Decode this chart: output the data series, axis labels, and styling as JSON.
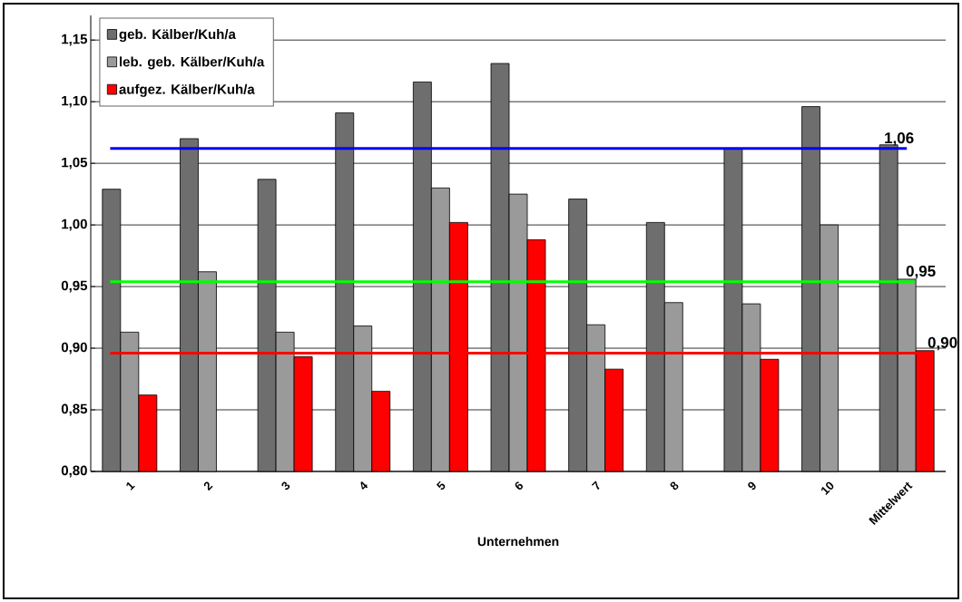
{
  "chart_data": {
    "type": "bar",
    "xlabel": "Unternehmen",
    "categories": [
      "1",
      "2",
      "3",
      "4",
      "5",
      "6",
      "7",
      "8",
      "9",
      "10",
      "Mittelwert"
    ],
    "series": [
      {
        "name": "geb. Kälber/Kuh/a",
        "color": "#6e6e6e",
        "values": [
          1.029,
          1.07,
          1.037,
          1.091,
          1.116,
          1.131,
          1.021,
          1.002,
          1.062,
          1.096,
          1.065
        ]
      },
      {
        "name": "leb. geb. Kälber/Kuh/a",
        "color": "#9a9a9a",
        "values": [
          0.913,
          0.962,
          0.913,
          0.918,
          1.03,
          1.025,
          0.919,
          0.937,
          0.936,
          1.0,
          0.956
        ]
      },
      {
        "name": "aufgez. Kälber/Kuh/a",
        "color": "#ff0000",
        "values": [
          0.862,
          null,
          0.893,
          0.865,
          1.002,
          0.988,
          0.883,
          null,
          0.891,
          null,
          0.898
        ]
      }
    ],
    "ylim": [
      0.8,
      1.17
    ],
    "yticks": [
      {
        "value": 0.8,
        "label": "0,80"
      },
      {
        "value": 0.85,
        "label": "0,85"
      },
      {
        "value": 0.9,
        "label": "0,90"
      },
      {
        "value": 0.95,
        "label": "0,95"
      },
      {
        "value": 1.0,
        "label": "1,00"
      },
      {
        "value": 1.05,
        "label": "1,05"
      },
      {
        "value": 1.1,
        "label": "1,10"
      },
      {
        "value": 1.15,
        "label": "1,15"
      }
    ],
    "ref_lines": [
      {
        "axis": "y",
        "value": 1.062,
        "label": "1,06",
        "color": "#0000ff"
      },
      {
        "axis": "y",
        "value": 0.954,
        "label": "0,95",
        "color": "#00ff00"
      },
      {
        "axis": "y",
        "value": 0.896,
        "label": "0,90",
        "color": "#ff0000"
      }
    ],
    "grid": "y",
    "legend": "top left"
  }
}
